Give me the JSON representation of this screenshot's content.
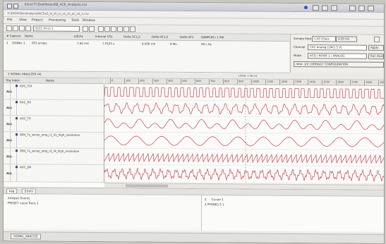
{
  "window": {
    "title": "Excel F:\\Dashboard\\8_ACE_Analysis.csv",
    "path": "F:\\DATA\\Slot\\Analysis\\NC3\\s2_ts_sh_tc_s1_ch_ac_v0_n.csv"
  },
  "menu": [
    "File",
    "View",
    "Project",
    "Processing",
    "Tools",
    "Window"
  ],
  "toolbar": {
    "search_value": "SLC1 (hi-z) 1"
  },
  "capture_table": {
    "headers": [
      "# Capture",
      "Name",
      "LOCAL",
      "Interval CS1",
      "Delta SC1,2",
      "Delta AT1,2",
      "Delta AT1",
      "SAMPLES / 1 MA"
    ],
    "rows": [
      [
        "1",
        "SIGNAL 1",
        "001 arrays",
        "7.60 mV",
        "7.0125 s",
        "8.008 mV",
        "8 Mv",
        "99 s Hz"
      ]
    ]
  },
  "right_panel": {
    "sample_rate_label": "Sample Rate",
    "sample_rate_value": "5.00 GSa/s",
    "timebase_label": "Timebase",
    "timebase_value": "4.00 ms",
    "channel_label": "Channel",
    "channel_value": "CH1 Analog (1M/1.5 V)",
    "mode_label": "Mode",
    "mode_value": "ACQ / NOISE 1 / ANALOG",
    "apply_label": "Apply",
    "run_label": "Run Analysis",
    "ratio_label": "ratio: 1/2 | DEFAULT CONFIGURATION"
  },
  "wave_panel": {
    "title": "1 SIGNAL ANALYZER (4)",
    "col_trigger": "Trig",
    "col_index": "Index",
    "col_name": "Name",
    "time_ticks": [
      "0",
      "100",
      "200",
      "300",
      "400",
      "500",
      "600",
      "700",
      "800",
      "900",
      "1000",
      "1100",
      "1200",
      "1300",
      "1400",
      "1500",
      "1600",
      "1700",
      "1800",
      "1900"
    ],
    "cursor_label": "LOCAL 2.38 ms",
    "signals": [
      {
        "trig": "ALL",
        "name": "ADC_TDI"
      },
      {
        "trig": "ALL",
        "name": "ADC_RX"
      },
      {
        "trig": "ALL",
        "name": "ADC_TX"
      },
      {
        "trig": "ALL",
        "name": "SEN_Tx_sense_amp_r1_01_high_resolution"
      },
      {
        "trig": "ALL",
        "name": "SEN_Tx_sense_amp_r2_r4_high_resolution"
      },
      {
        "trig": "ALL",
        "name": "ADC_SN"
      }
    ]
  },
  "bottom_panel": {
    "tabs": [
      "Log",
      "Errors"
    ],
    "list_items": [
      "Analysis Events",
      "PRESET: Local Trace 1"
    ],
    "right_items": [
      "Z",
      "Cursor 1",
      "2 PROBES S 1"
    ],
    "status_tab": "SIGNAL_ANALYZE"
  },
  "colors": {
    "trace": "#c8434c",
    "accent": "#2b57c4"
  }
}
